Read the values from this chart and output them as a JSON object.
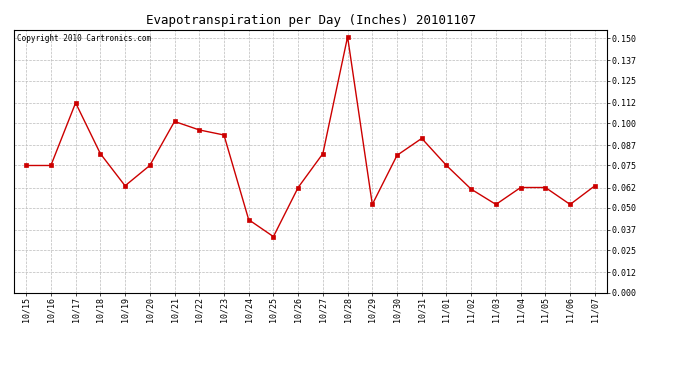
{
  "title": "Evapotranspiration per Day (Inches) 20101107",
  "copyright": "Copyright 2010 Cartronics.com",
  "x_labels": [
    "10/15",
    "10/16",
    "10/17",
    "10/18",
    "10/19",
    "10/20",
    "10/21",
    "10/22",
    "10/23",
    "10/24",
    "10/25",
    "10/26",
    "10/27",
    "10/28",
    "10/29",
    "10/30",
    "10/31",
    "11/01",
    "11/02",
    "11/03",
    "11/04",
    "11/05",
    "11/06",
    "11/07"
  ],
  "y_values": [
    0.075,
    0.075,
    0.112,
    0.082,
    0.063,
    0.075,
    0.101,
    0.096,
    0.093,
    0.043,
    0.033,
    0.062,
    0.082,
    0.151,
    0.052,
    0.081,
    0.091,
    0.075,
    0.061,
    0.052,
    0.062,
    0.062,
    0.052,
    0.063
  ],
  "yticks": [
    0.0,
    0.012,
    0.025,
    0.037,
    0.05,
    0.062,
    0.075,
    0.087,
    0.1,
    0.112,
    0.125,
    0.137,
    0.15
  ],
  "line_color": "#cc0000",
  "marker": "s",
  "marker_size": 2.5,
  "bg_color": "#ffffff",
  "plot_bg_color": "#ffffff",
  "grid_color": "#bbbbbb",
  "title_fontsize": 9,
  "tick_fontsize": 6,
  "copyright_fontsize": 5.5,
  "ylim": [
    0.0,
    0.155
  ],
  "linewidth": 1.0
}
